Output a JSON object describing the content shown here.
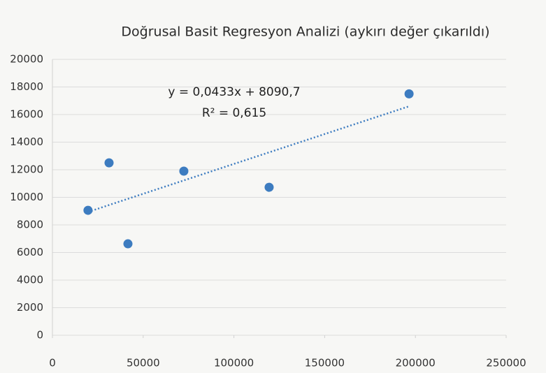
{
  "chart_data": {
    "type": "scatter",
    "title": "Doğrusal Basit Regresyon Analizi (aykırı değer çıkarıldı)",
    "series": [
      {
        "color": "#3d7cc0",
        "x": [
          19600,
          31200,
          41600,
          72400,
          119400,
          196500
        ],
        "values": [
          9060,
          12500,
          6630,
          11900,
          10730,
          17500
        ]
      }
    ],
    "trendline": {
      "slope": 0.0433,
      "intercept": 8090.7,
      "equation": "y = 0,0433x + 8090,7",
      "r2": "R² = 0,615",
      "style": "dotted"
    },
    "xlim": [
      0,
      250000
    ],
    "xticks": [
      0,
      50000,
      100000,
      150000,
      200000,
      250000
    ],
    "ylim": [
      0,
      20000
    ],
    "yticks": [
      0,
      2000,
      4000,
      6000,
      8000,
      10000,
      12000,
      14000,
      16000,
      18000,
      20000
    ],
    "grid": true
  }
}
